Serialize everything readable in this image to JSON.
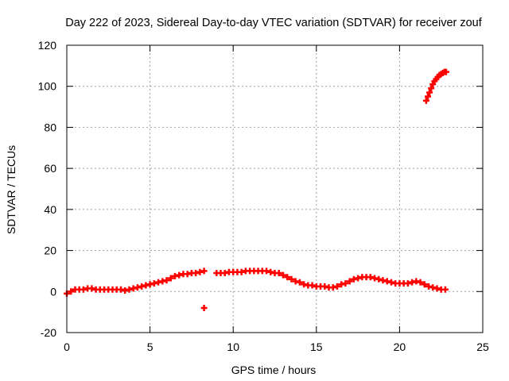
{
  "chart_data": {
    "type": "scatter",
    "title": "Day 222 of 2023, Sidereal Day-to-day VTEC variation (SDTVAR) for receiver zouf",
    "xlabel": "GPS time / hours",
    "ylabel": "SDTVAR / TECUs",
    "xlim": [
      0,
      25
    ],
    "ylim": [
      -20,
      120
    ],
    "x_ticks": [
      0,
      5,
      10,
      15,
      20,
      25
    ],
    "y_ticks": [
      -20,
      0,
      20,
      40,
      60,
      80,
      100,
      120
    ],
    "x_tick_labels": [
      "0",
      "5",
      "10",
      "15",
      "20",
      "25"
    ],
    "y_tick_labels": [
      "-20",
      "0",
      "20",
      "40",
      "60",
      "80",
      "100",
      "120"
    ],
    "grid": true,
    "marker": "plus",
    "series": [
      {
        "name": "zouf",
        "color": "#ff0000",
        "x": [
          0.0,
          0.25,
          0.5,
          0.75,
          1.0,
          1.25,
          1.5,
          1.75,
          2.0,
          2.25,
          2.5,
          2.75,
          3.0,
          3.25,
          3.5,
          3.75,
          4.0,
          4.25,
          4.5,
          4.75,
          5.0,
          5.25,
          5.5,
          5.75,
          6.0,
          6.25,
          6.5,
          6.75,
          7.0,
          7.25,
          7.5,
          7.75,
          8.0,
          8.25,
          8.25,
          9.0,
          9.25,
          9.5,
          9.75,
          10.0,
          10.25,
          10.5,
          10.75,
          11.0,
          11.25,
          11.5,
          11.75,
          12.0,
          12.25,
          12.5,
          12.75,
          13.0,
          13.25,
          13.5,
          13.75,
          14.0,
          14.25,
          14.5,
          14.75,
          15.0,
          15.25,
          15.5,
          15.75,
          16.0,
          16.25,
          16.5,
          16.75,
          17.0,
          17.25,
          17.5,
          17.75,
          18.0,
          18.25,
          18.5,
          18.75,
          19.0,
          19.25,
          19.5,
          19.75,
          20.0,
          20.25,
          20.5,
          20.75,
          21.0,
          21.25,
          21.5,
          21.75,
          22.0,
          22.25,
          22.5,
          22.75,
          21.6,
          21.7,
          21.8,
          21.9,
          22.0,
          22.1,
          22.2,
          22.3,
          22.4,
          22.5,
          22.6,
          22.7,
          22.8
        ],
        "y": [
          -1,
          0,
          1,
          1,
          1,
          1.5,
          1.5,
          1,
          1,
          1,
          1,
          1,
          1,
          1,
          0.5,
          1,
          1.5,
          2,
          2.5,
          3,
          3.5,
          4,
          4.5,
          5,
          5.5,
          6.5,
          7.5,
          8,
          8.5,
          8.5,
          9,
          9,
          9.5,
          10,
          -8,
          9,
          9,
          9,
          9.5,
          9.5,
          9.5,
          9.5,
          10,
          10,
          10,
          10,
          10,
          10,
          9.5,
          9,
          9,
          8,
          7,
          6,
          5,
          4.5,
          3.5,
          3,
          3,
          2.5,
          2.5,
          2.5,
          2,
          2,
          2.5,
          3.5,
          4,
          5,
          6,
          6.5,
          7,
          7,
          7,
          6.5,
          6,
          5.5,
          5,
          4.5,
          4,
          4,
          4,
          4,
          4.5,
          5,
          4.5,
          3.5,
          2.5,
          2,
          1.5,
          1,
          1,
          93,
          95,
          97,
          99,
          101,
          102.5,
          103.5,
          104.5,
          105.5,
          106,
          106.5,
          107,
          107
        ]
      }
    ]
  }
}
